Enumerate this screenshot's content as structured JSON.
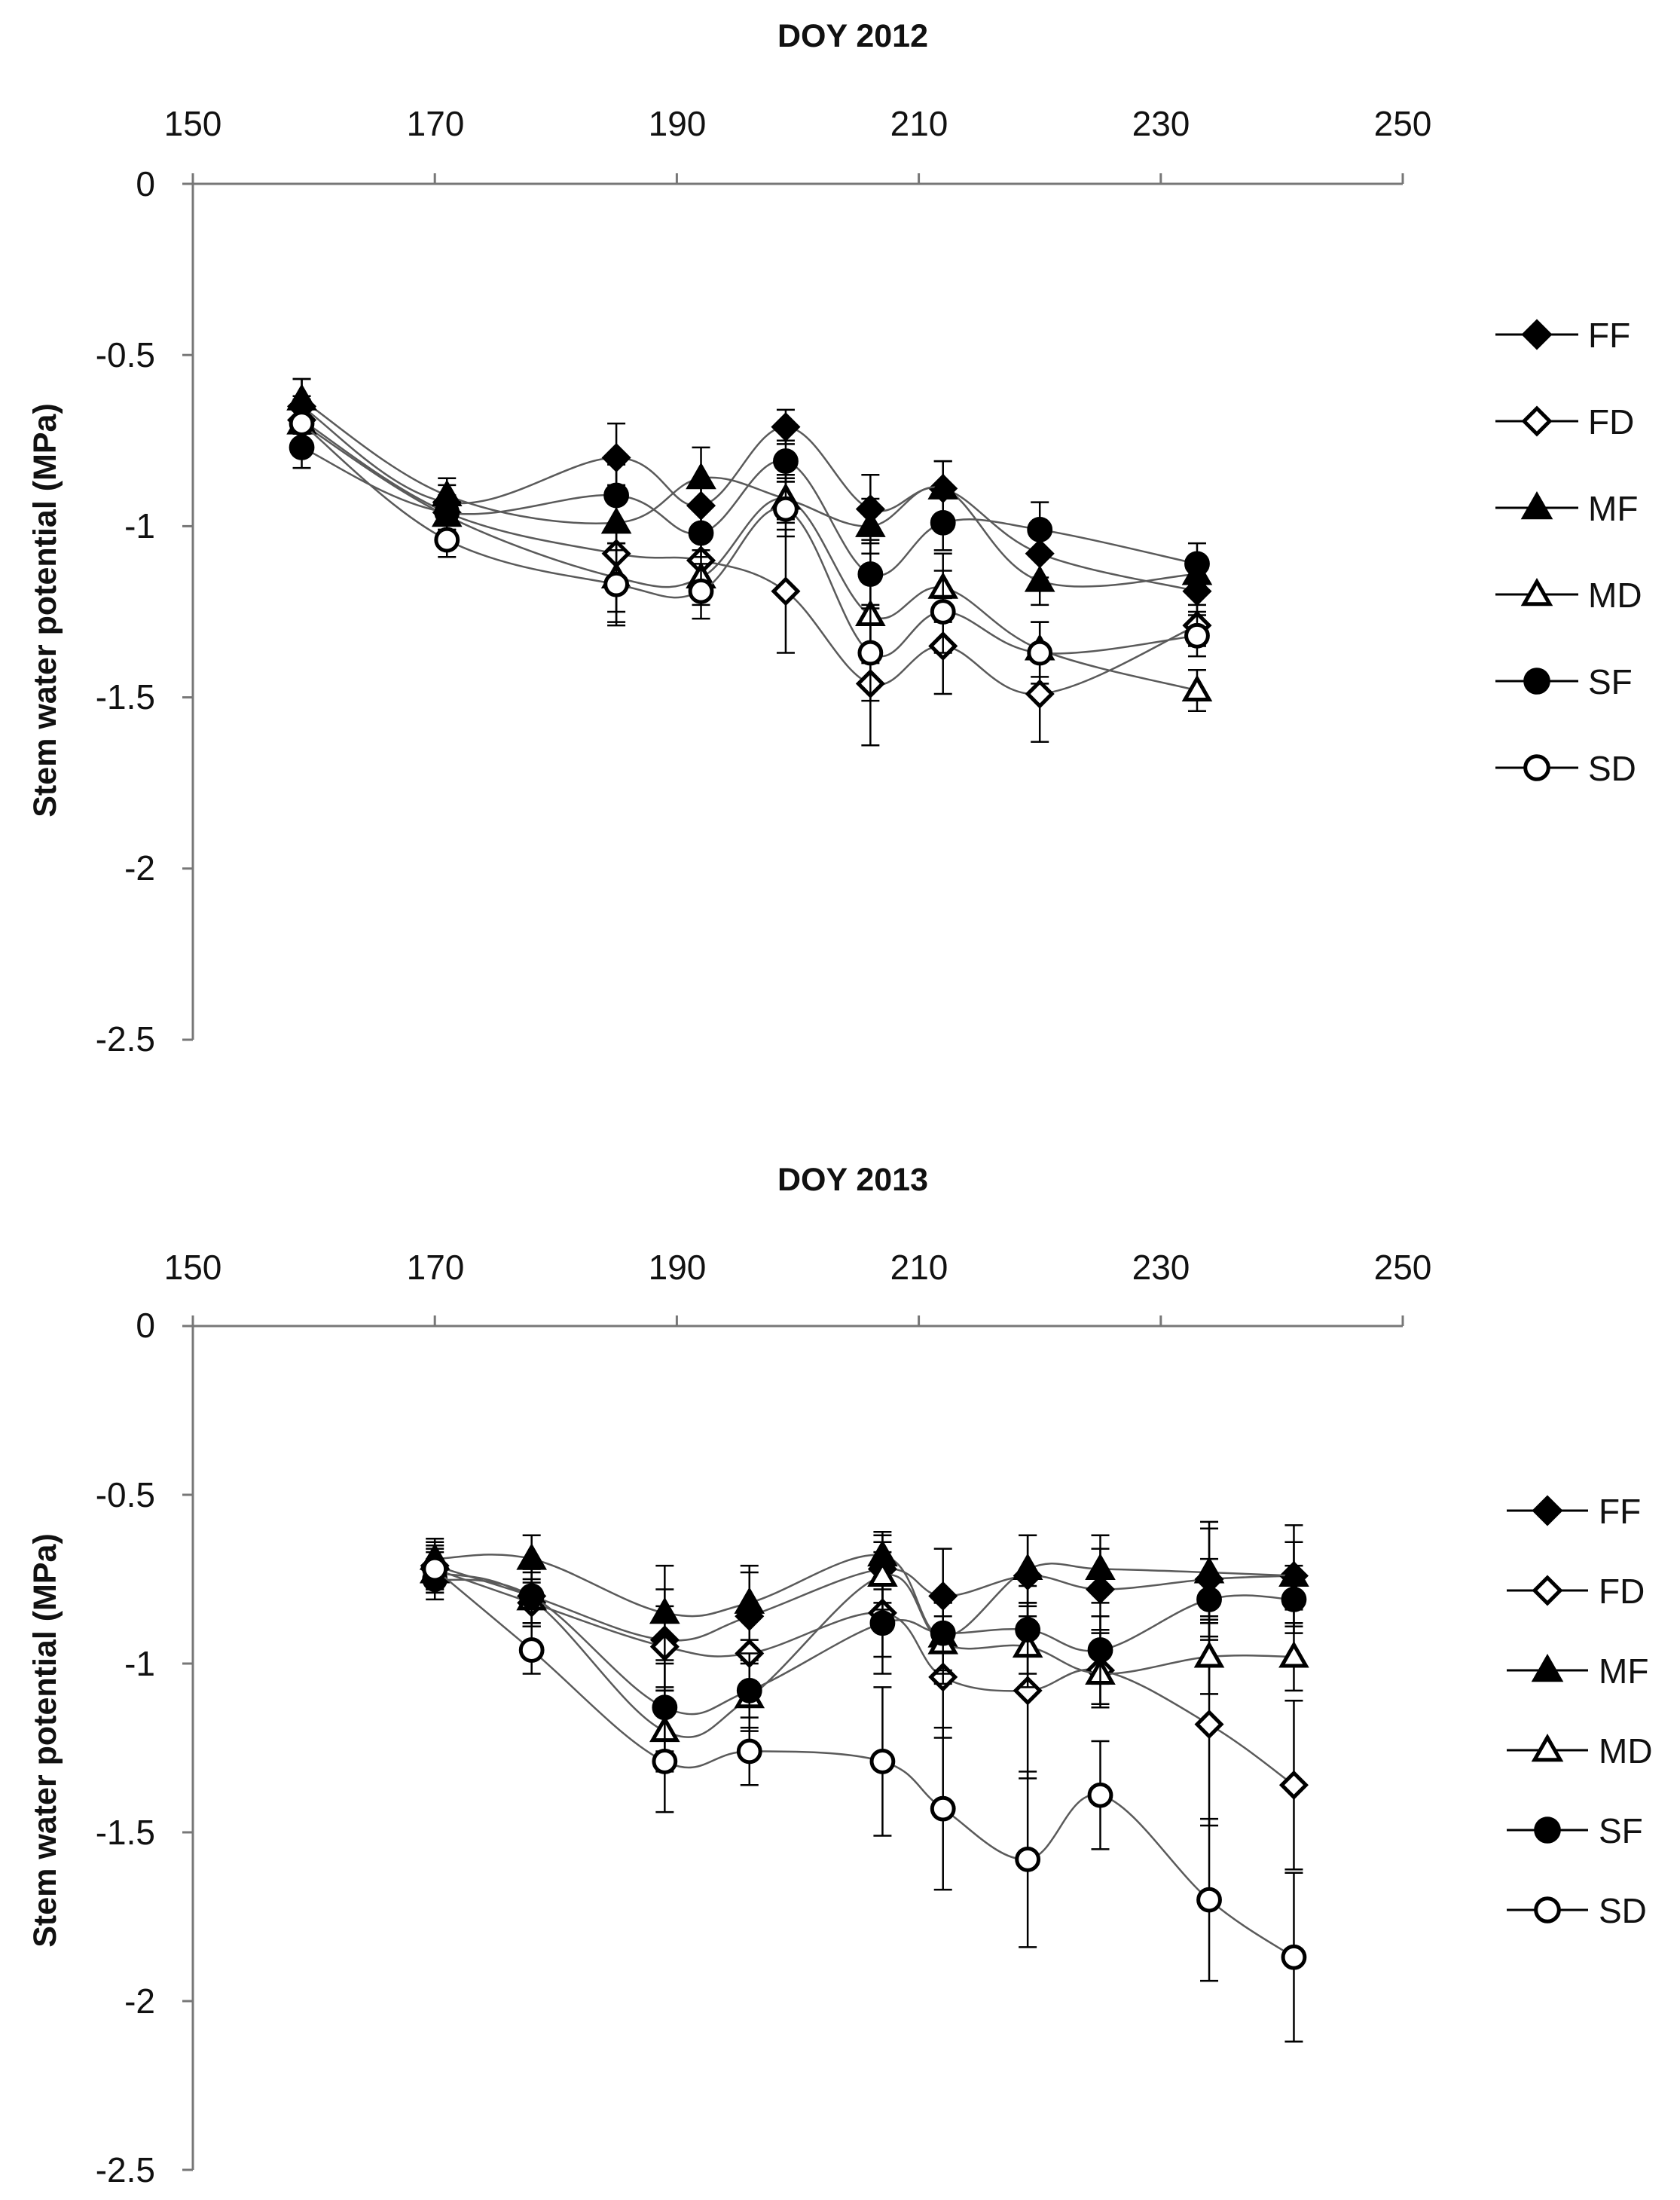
{
  "colors": {
    "line": "#5a5a5a",
    "marker": "#000000",
    "axis": "#777777",
    "text": "#111111"
  },
  "chart_data": [
    {
      "type": "line",
      "title": "DOY 2012",
      "xlabel": "",
      "ylabel": "Stem water potential  (MPa)",
      "xlim": [
        150,
        250
      ],
      "ylim": [
        -2.5,
        0
      ],
      "xticks": [
        150,
        170,
        190,
        210,
        230,
        250
      ],
      "yticks": [
        0,
        -0.5,
        -1,
        -1.5,
        -2,
        -2.5
      ],
      "xtick_labels": [
        "150",
        "170",
        "190",
        "210",
        "230",
        "250"
      ],
      "ytick_labels": [
        "0",
        "-0.5",
        "-1",
        "-1.5",
        "-2",
        "-2.5"
      ],
      "legend_position": "right",
      "series": [
        {
          "name": "FF",
          "marker": "diamond",
          "filled": true,
          "x": [
            159,
            171,
            185,
            192,
            199,
            206,
            212,
            220,
            233
          ],
          "y": [
            -0.65,
            -0.93,
            -0.8,
            -0.94,
            -0.71,
            -0.95,
            -0.89,
            -1.08,
            -1.19
          ],
          "err": [
            0.08,
            0.05,
            0.1,
            0.06,
            0.05,
            0.1,
            0.08,
            0.07,
            0.06
          ]
        },
        {
          "name": "FD",
          "marker": "diamond",
          "filled": false,
          "x": [
            159,
            171,
            185,
            192,
            199,
            206,
            212,
            220,
            233
          ],
          "y": [
            -0.69,
            -0.96,
            -1.08,
            -1.1,
            -1.19,
            -1.46,
            -1.35,
            -1.49,
            -1.29
          ],
          "err": [
            0.07,
            0.05,
            0.2,
            0.07,
            0.18,
            0.18,
            0.14,
            0.14,
            0.06
          ]
        },
        {
          "name": "MF",
          "marker": "triangle",
          "filled": true,
          "x": [
            159,
            171,
            185,
            192,
            199,
            206,
            212,
            220,
            233
          ],
          "y": [
            -0.63,
            -0.91,
            -0.99,
            -0.86,
            -0.92,
            -1.0,
            -0.89,
            -1.16,
            -1.14
          ],
          "err": [
            0.06,
            0.05,
            0.08,
            0.09,
            0.07,
            0.08,
            0.08,
            0.07,
            0.05
          ]
        },
        {
          "name": "MD",
          "marker": "triangle",
          "filled": false,
          "x": [
            159,
            171,
            185,
            192,
            199,
            206,
            212,
            220,
            233
          ],
          "y": [
            -0.7,
            -0.97,
            -1.15,
            -1.15,
            -0.92,
            -1.26,
            -1.18,
            -1.36,
            -1.48
          ],
          "err": [
            0.07,
            0.05,
            0.1,
            0.08,
            0.06,
            0.14,
            0.1,
            0.08,
            0.06
          ]
        },
        {
          "name": "SF",
          "marker": "circle",
          "filled": true,
          "x": [
            159,
            171,
            185,
            192,
            199,
            206,
            212,
            220,
            233
          ],
          "y": [
            -0.77,
            -0.96,
            -0.91,
            -1.02,
            -0.81,
            -1.14,
            -0.99,
            -1.01,
            -1.11
          ],
          "err": [
            0.06,
            0.05,
            0.09,
            0.07,
            0.06,
            0.1,
            0.08,
            0.08,
            0.06
          ]
        },
        {
          "name": "SD",
          "marker": "circle",
          "filled": false,
          "x": [
            159,
            171,
            185,
            192,
            199,
            206,
            212,
            220,
            233
          ],
          "y": [
            -0.7,
            -1.04,
            -1.17,
            -1.19,
            -0.95,
            -1.37,
            -1.25,
            -1.37,
            -1.32
          ],
          "err": [
            0.07,
            0.05,
            0.12,
            0.08,
            0.08,
            0.14,
            0.12,
            0.09,
            0.06
          ]
        }
      ]
    },
    {
      "type": "line",
      "title": "DOY 2013",
      "xlabel": "",
      "ylabel": "Stem water potential (MPa)",
      "xlim": [
        150,
        250
      ],
      "ylim": [
        -2.5,
        0
      ],
      "xticks": [
        150,
        170,
        190,
        210,
        230,
        250
      ],
      "yticks": [
        0,
        -0.5,
        -1,
        -1.5,
        -2,
        -2.5
      ],
      "xtick_labels": [
        "150",
        "170",
        "190",
        "210",
        "230",
        "250"
      ],
      "ytick_labels": [
        "0",
        "-0.5",
        "-1",
        "-1.5",
        "-2",
        "-2.5"
      ],
      "legend_position": "right",
      "series": [
        {
          "name": "FF",
          "marker": "diamond",
          "filled": true,
          "x": [
            170,
            178,
            189,
            196,
            207,
            212,
            219,
            225,
            234,
            241
          ],
          "y": [
            -0.71,
            -0.8,
            -0.93,
            -0.86,
            -0.72,
            -0.8,
            -0.74,
            -0.78,
            -0.75,
            -0.74
          ],
          "err": [
            0.07,
            0.08,
            0.15,
            0.13,
            0.1,
            0.14,
            0.12,
            0.12,
            0.17,
            0.15
          ]
        },
        {
          "name": "FD",
          "marker": "diamond",
          "filled": false,
          "x": [
            170,
            178,
            189,
            196,
            207,
            212,
            219,
            225,
            234,
            241
          ],
          "y": [
            -0.72,
            -0.82,
            -0.95,
            -0.97,
            -0.85,
            -1.04,
            -1.08,
            -1.02,
            -1.18,
            -1.36
          ],
          "err": [
            0.06,
            0.07,
            0.12,
            0.12,
            0.18,
            0.18,
            0.26,
            0.11,
            0.3,
            0.25
          ]
        },
        {
          "name": "MF",
          "marker": "triangle",
          "filled": true,
          "x": [
            170,
            178,
            189,
            196,
            207,
            212,
            219,
            225,
            234,
            241
          ],
          "y": [
            -0.69,
            -0.69,
            -0.85,
            -0.82,
            -0.68,
            -0.92,
            -0.72,
            -0.72,
            -0.73,
            -0.74
          ],
          "err": [
            0.06,
            0.07,
            0.14,
            0.11,
            0.07,
            0.1,
            0.1,
            0.1,
            0.13,
            0.1
          ]
        },
        {
          "name": "MD",
          "marker": "triangle",
          "filled": false,
          "x": [
            170,
            178,
            189,
            196,
            207,
            212,
            219,
            225,
            234,
            241
          ],
          "y": [
            -0.73,
            -0.81,
            -1.2,
            -1.1,
            -0.74,
            -0.94,
            -0.95,
            -1.03,
            -0.98,
            -0.98
          ],
          "err": [
            0.06,
            0.08,
            0.12,
            0.1,
            0.1,
            0.12,
            0.12,
            0.09,
            0.11,
            0.1
          ]
        },
        {
          "name": "SF",
          "marker": "circle",
          "filled": true,
          "x": [
            170,
            178,
            189,
            196,
            207,
            212,
            219,
            225,
            234,
            241
          ],
          "y": [
            -0.75,
            -0.8,
            -1.13,
            -1.08,
            -0.88,
            -0.91,
            -0.9,
            -0.96,
            -0.81,
            -0.81
          ],
          "err": [
            0.06,
            0.08,
            0.13,
            0.11,
            0.1,
            0.12,
            0.13,
            0.1,
            0.12,
            0.1
          ]
        },
        {
          "name": "SD",
          "marker": "circle",
          "filled": false,
          "x": [
            170,
            178,
            189,
            196,
            207,
            212,
            219,
            225,
            234,
            241
          ],
          "y": [
            -0.72,
            -0.96,
            -1.29,
            -1.26,
            -1.29,
            -1.43,
            -1.58,
            -1.39,
            -1.7,
            -1.87
          ],
          "err": [
            0.07,
            0.07,
            0.15,
            0.1,
            0.22,
            0.24,
            0.26,
            0.16,
            0.24,
            0.25
          ]
        }
      ]
    }
  ]
}
